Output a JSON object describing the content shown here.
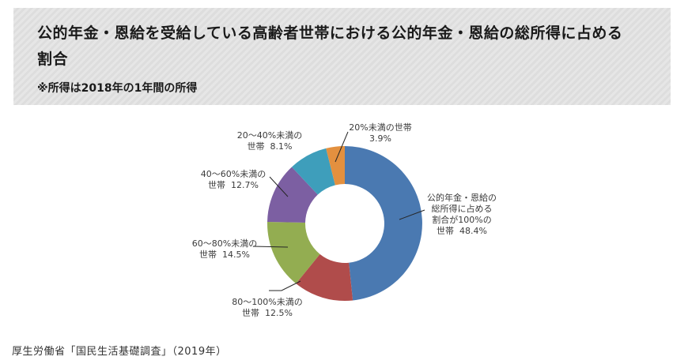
{
  "header": {
    "title": "公的年金・恩給を受給している高齢者世帯における公的年金・恩給の総所得に占める割合",
    "note": "※所得は2018年の1年間の所得",
    "background": "#e5e5e5",
    "stripe_color": "#dddddd"
  },
  "source": {
    "text": "厚生労働省「国民生活基礎調査」（2019年）"
  },
  "chart_data": {
    "type": "pie",
    "subtype": "donut",
    "title": "公的年金・恩給を受給している高齢者世帯における公的年金・恩給の総所得に占める割合",
    "unit": "%",
    "start_angle_deg": 0,
    "direction": "clockwise",
    "inner_radius_ratio": 0.51,
    "legend_position": "none",
    "labels_position": "outside-with-leader-lines",
    "slices": [
      {
        "name": "公的年金・恩給の総所得に占める割合が100%の世帯",
        "value": 48.4,
        "color": "#4A79B1",
        "label_lines": [
          "公的年金・恩給の",
          "総所得に占める",
          "割合が100%の",
          "世帯  48.4%"
        ]
      },
      {
        "name": "80～100%未満の世帯",
        "value": 12.5,
        "color": "#B04C4B",
        "label_lines": [
          "80～100%未満の",
          "世帯  12.5%"
        ]
      },
      {
        "name": "60～80%未満の世帯",
        "value": 14.5,
        "color": "#93AD51",
        "label_lines": [
          "60～80%未満の",
          "世帯  14.5%"
        ]
      },
      {
        "name": "40～60%未満の世帯",
        "value": 12.7,
        "color": "#7C5FA2",
        "label_lines": [
          "40～60%未満の",
          "世帯  12.7%"
        ]
      },
      {
        "name": "20～40%未満の世帯",
        "value": 8.1,
        "color": "#3E9EBB",
        "label_lines": [
          "20～40%未満の",
          "世帯  8.1%"
        ]
      },
      {
        "name": "20%未満の世帯",
        "value": 3.9,
        "color": "#E3903F",
        "label_lines": [
          "20%未満の世帯",
          "3.9%"
        ]
      }
    ]
  }
}
